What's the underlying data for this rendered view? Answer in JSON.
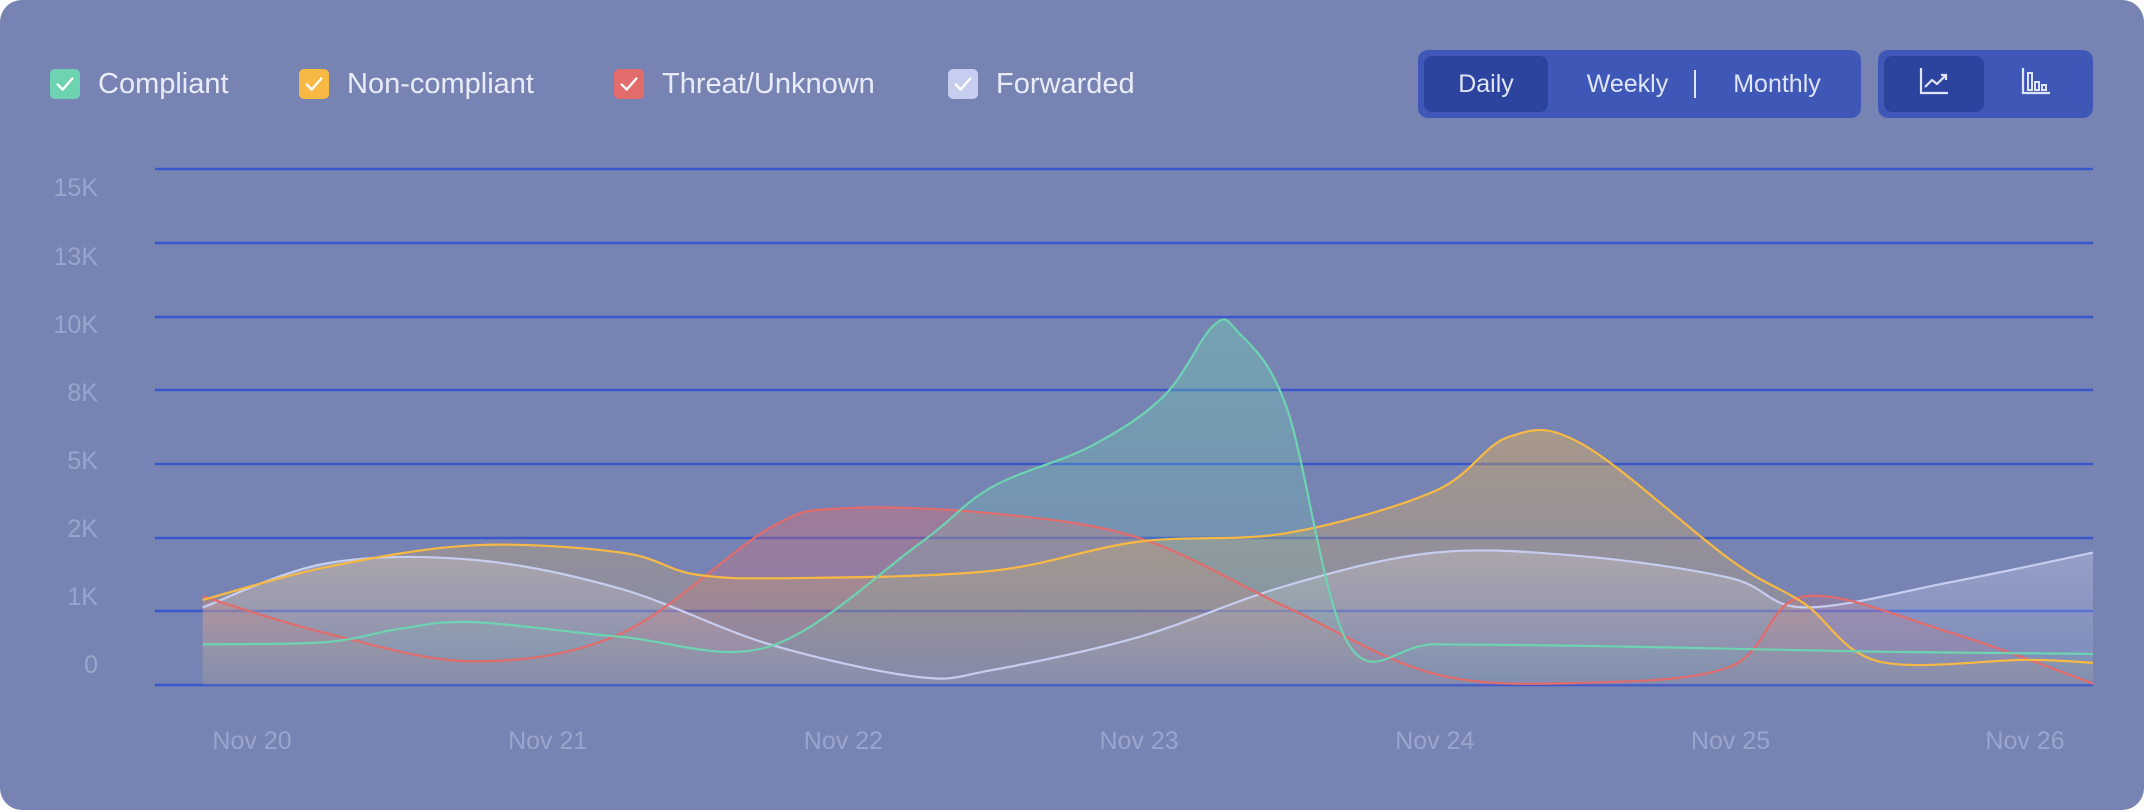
{
  "legend": {
    "items": [
      {
        "label": "Compliant",
        "color": "#6dd3b1",
        "checked": true
      },
      {
        "label": "Non-compliant",
        "color": "#f7b944",
        "checked": true
      },
      {
        "label": "Threat/Unknown",
        "color": "#e26b6b",
        "checked": true
      },
      {
        "label": "Forwarded",
        "color": "#c7cdee",
        "checked": true
      }
    ]
  },
  "period_toggle": {
    "options": [
      "Daily",
      "Weekly",
      "Monthly"
    ],
    "selected": "Daily"
  },
  "chart_type_toggle": {
    "options": [
      "line-chart-icon",
      "bar-chart-icon"
    ],
    "selected": "line-chart-icon"
  },
  "colors": {
    "card_background": "#7784b3",
    "gridline": "#3a57c9",
    "axis_text": "#9aa4cc",
    "toggle_background": "#3f58b8",
    "toggle_active": "#2d449f"
  },
  "chart_data": {
    "type": "area",
    "categories": [
      "Nov 20",
      "Nov 21",
      "Nov 22",
      "Nov 23",
      "Nov 24",
      "Nov 25",
      "Nov 26"
    ],
    "y_ticks": [
      "15K",
      "13K",
      "10K",
      "8K",
      "5K",
      "2K",
      "1K",
      "0"
    ],
    "grid": true,
    "legend_position": "top-left",
    "series": [
      {
        "name": "Compliant",
        "color": "#6dd3b1",
        "x": [
          "2023-11-19T20:00",
          "2023-11-20T06:00",
          "2023-11-20T12:00",
          "2023-11-20T18:00",
          "2023-11-21T06:00",
          "2023-11-21T18:00",
          "2023-11-22T06:00",
          "2023-11-22T12:00",
          "2023-11-22T20:00",
          "2023-11-23T02:00",
          "2023-11-23T06:00",
          "2023-11-23T08:00",
          "2023-11-23T12:00",
          "2023-11-23T17:00",
          "2023-11-24T00:00",
          "2023-11-24T12:00",
          "2023-11-25T00:00",
          "2023-11-25T12:00",
          "2023-11-26T12:00"
        ],
        "y": [
          550,
          580,
          760,
          850,
          650,
          520,
          1900,
          4050,
          5700,
          7750,
          9750,
          9600,
          7250,
          550,
          550,
          530,
          490,
          450,
          420
        ]
      },
      {
        "name": "Non-compliant",
        "color": "#f7b944",
        "x": [
          "2023-11-19T20:00",
          "2023-11-20T06:00",
          "2023-11-20T18:00",
          "2023-11-21T06:00",
          "2023-11-21T12:00",
          "2023-11-21T20:00",
          "2023-11-22T12:00",
          "2023-11-23T00:00",
          "2023-11-23T12:00",
          "2023-11-24T00:00",
          "2023-11-24T06:00",
          "2023-11-24T12:00",
          "2023-11-25T00:00",
          "2023-11-25T06:00",
          "2023-11-25T12:00",
          "2023-11-26T00:00",
          "2023-11-26T12:00"
        ],
        "y": [
          1150,
          1600,
          1900,
          1800,
          1500,
          1450,
          1550,
          1950,
          2200,
          3900,
          6100,
          5800,
          1700,
          1100,
          320,
          340,
          300
        ]
      },
      {
        "name": "Threat/Unknown",
        "color": "#e26b6b",
        "x": [
          "2023-11-19T20:00",
          "2023-11-20T06:00",
          "2023-11-20T18:00",
          "2023-11-21T06:00",
          "2023-11-21T18:00",
          "2023-11-22T00:00",
          "2023-11-22T12:00",
          "2023-11-23T00:00",
          "2023-11-23T12:00",
          "2023-11-24T00:00",
          "2023-11-24T12:00",
          "2023-11-25T00:00",
          "2023-11-25T06:00",
          "2023-11-25T18:00",
          "2023-11-26T12:00"
        ],
        "y": [
          1200,
          700,
          320,
          700,
          2400,
          3200,
          3000,
          2000,
          1050,
          150,
          30,
          250,
          1200,
          700,
          20
        ]
      },
      {
        "name": "Forwarded",
        "color": "#c7cdee",
        "x": [
          "2023-11-19T20:00",
          "2023-11-20T06:00",
          "2023-11-20T18:00",
          "2023-11-21T06:00",
          "2023-11-21T18:00",
          "2023-11-22T06:00",
          "2023-11-22T12:00",
          "2023-11-23T00:00",
          "2023-11-23T12:00",
          "2023-11-24T00:00",
          "2023-11-24T12:00",
          "2023-11-25T00:00",
          "2023-11-25T06:00",
          "2023-11-25T18:00",
          "2023-11-26T12:00"
        ],
        "y": [
          1050,
          1650,
          1700,
          1300,
          550,
          110,
          200,
          650,
          1350,
          1800,
          1750,
          1450,
          1050,
          1400,
          1800
        ]
      }
    ]
  }
}
